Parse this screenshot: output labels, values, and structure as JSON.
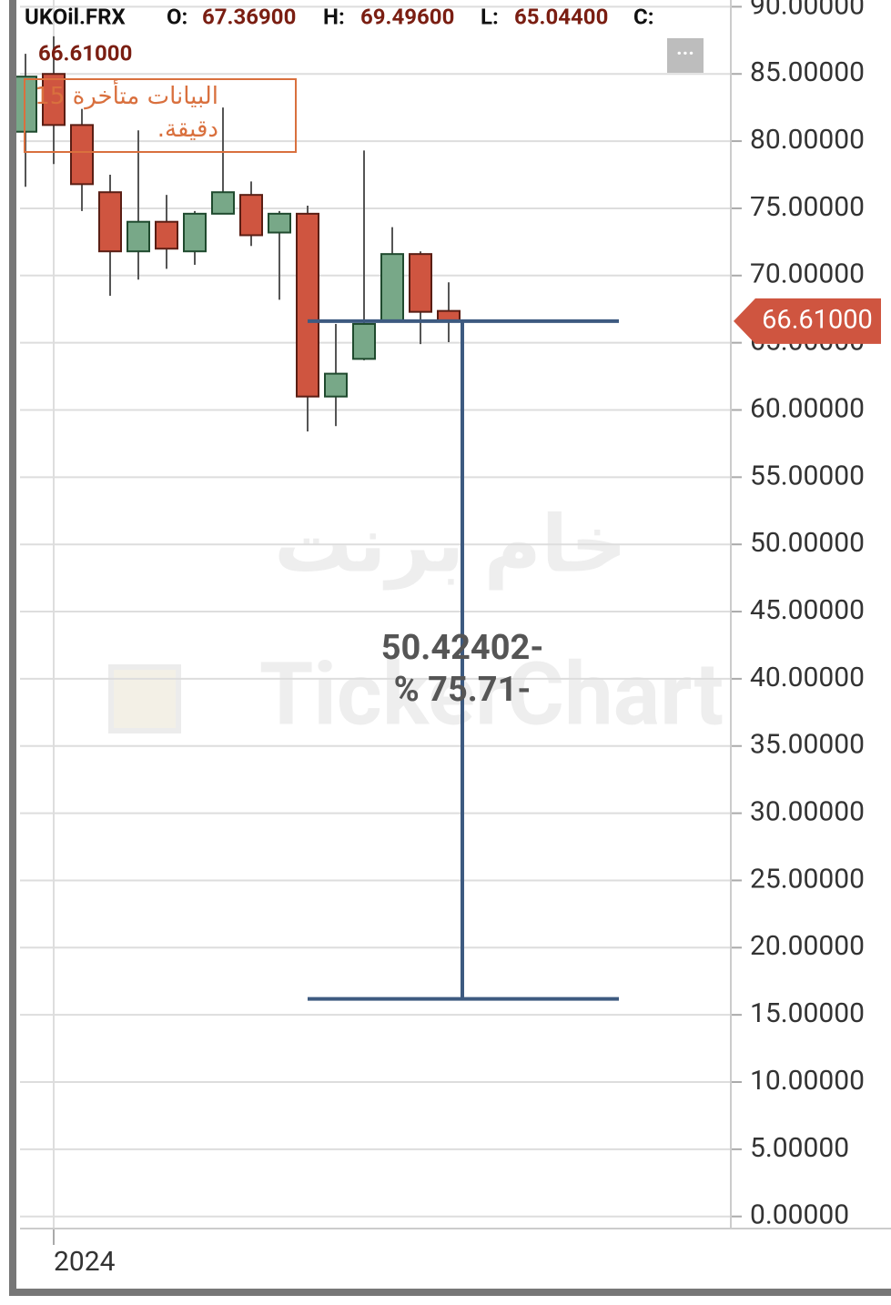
{
  "chart_data": {
    "type": "candlestick",
    "symbol": "UKOil.FRX",
    "header": [
      {
        "name": "O:",
        "label": "67.36900"
      },
      {
        "name": "H:",
        "label": "69.49600"
      },
      {
        "name": "L:",
        "label": "65.04400"
      },
      {
        "name": "C:",
        "label": "66.61000"
      }
    ],
    "notice": "البيانات متأخرة 15 دقيقة.",
    "watermark": "خام برنت",
    "brand": "TickerChart",
    "categories": [
      null,
      "2024",
      null,
      null,
      null,
      null,
      null,
      null,
      null,
      null,
      null,
      null,
      null,
      null,
      null,
      null
    ],
    "open": [
      80.7,
      85.0,
      81.2,
      76.2,
      71.8,
      74.0,
      71.8,
      74.6,
      76.0,
      73.2,
      74.6,
      61.0,
      63.8,
      66.6,
      71.6,
      67.369
    ],
    "high": [
      86.5,
      87.8,
      82.4,
      77.5,
      80.8,
      76.0,
      74.8,
      82.5,
      77.0,
      74.8,
      75.2,
      66.4,
      79.3,
      73.6,
      71.8,
      69.496
    ],
    "low": [
      76.6,
      78.3,
      74.8,
      68.5,
      69.7,
      70.5,
      70.8,
      74.6,
      72.2,
      68.2,
      58.4,
      58.8,
      63.7,
      66.6,
      64.9,
      65.044
    ],
    "close": [
      84.8,
      81.2,
      76.8,
      71.8,
      74.0,
      72.0,
      74.6,
      76.2,
      73.0,
      74.6,
      61.0,
      62.7,
      66.4,
      71.6,
      67.3,
      66.61
    ],
    "up_color": "#78a888",
    "down_color": "#cf5540",
    "last_price_label": "66.61000",
    "measure": {
      "start": 66.61,
      "end": 16.18598,
      "change_label": "50.42402-",
      "percent_label": "% 75.71-"
    },
    "ylim": [
      -0.9,
      90.5
    ],
    "yticks": [
      {
        "value": 0,
        "label": "0.00000"
      },
      {
        "value": 5,
        "label": "5.00000"
      },
      {
        "value": 10,
        "label": "10.00000"
      },
      {
        "value": 15,
        "label": "15.00000"
      },
      {
        "value": 20,
        "label": "20.00000"
      },
      {
        "value": 25,
        "label": "25.00000"
      },
      {
        "value": 30,
        "label": "30.00000"
      },
      {
        "value": 35,
        "label": "35.00000"
      },
      {
        "value": 40,
        "label": "40.00000"
      },
      {
        "value": 45,
        "label": "45.00000"
      },
      {
        "value": 50,
        "label": "50.00000"
      },
      {
        "value": 55,
        "label": "55.00000"
      },
      {
        "value": 60,
        "label": "60.00000"
      },
      {
        "value": 65,
        "label": "65.00000"
      },
      {
        "value": 70,
        "label": "70.00000"
      },
      {
        "value": 75,
        "label": "75.00000"
      },
      {
        "value": 80,
        "label": "80.00000"
      },
      {
        "value": 85,
        "label": "85.00000"
      },
      {
        "value": 90,
        "label": "90.00000"
      }
    ],
    "grid": true
  }
}
